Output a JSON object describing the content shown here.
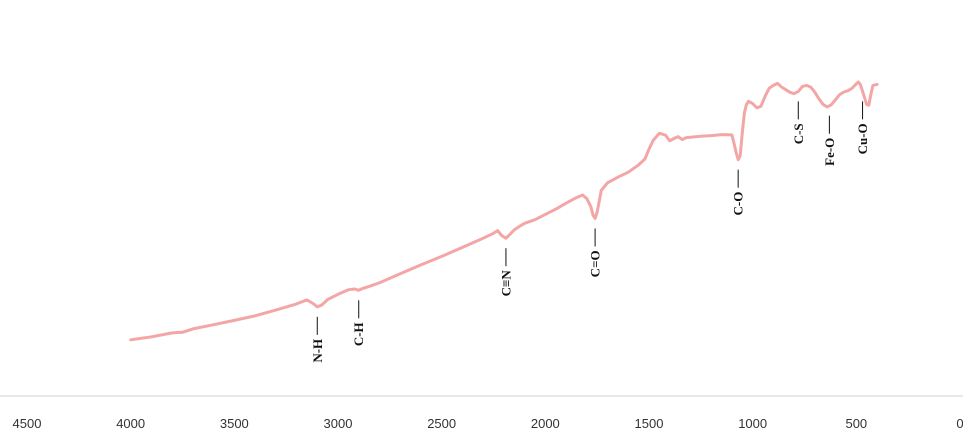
{
  "chart_data": {
    "type": "line",
    "title": "",
    "xlabel": "",
    "ylabel": "",
    "xlim": [
      4500,
      0
    ],
    "x_reversed": true,
    "ylim": [
      0,
      100
    ],
    "grid": false,
    "legend": "none",
    "x_ticks": [
      "4500",
      "4000",
      "3500",
      "3000",
      "2500",
      "2000",
      "1500",
      "1000",
      "500",
      "0"
    ],
    "series": [
      {
        "color": "#f4a6a6",
        "x": [
          4000,
          3900,
          3800,
          3750,
          3700,
          3600,
          3500,
          3400,
          3300,
          3200,
          3150,
          3120,
          3100,
          3080,
          3050,
          3000,
          2950,
          2920,
          2900,
          2880,
          2850,
          2800,
          2700,
          2600,
          2500,
          2400,
          2300,
          2250,
          2230,
          2210,
          2190,
          2170,
          2150,
          2120,
          2100,
          2050,
          2000,
          1950,
          1900,
          1850,
          1820,
          1800,
          1780,
          1770,
          1760,
          1750,
          1730,
          1700,
          1650,
          1600,
          1550,
          1520,
          1500,
          1480,
          1450,
          1420,
          1400,
          1380,
          1360,
          1340,
          1320,
          1300,
          1250,
          1200,
          1150,
          1100,
          1090,
          1080,
          1070,
          1060,
          1050,
          1040,
          1030,
          1020,
          1000,
          980,
          960,
          950,
          940,
          920,
          900,
          880,
          860,
          840,
          820,
          800,
          780,
          760,
          740,
          720,
          700,
          680,
          660,
          640,
          620,
          600,
          580,
          560,
          540,
          520,
          500,
          490,
          480,
          470,
          460,
          450,
          440,
          430,
          420,
          400
        ],
        "y": [
          15.2,
          16.1,
          17.3,
          17.5,
          18.5,
          19.8,
          21.1,
          22.5,
          24.2,
          26.1,
          27.3,
          26.2,
          25.2,
          25.7,
          27.4,
          29.0,
          30.4,
          30.6,
          30.2,
          30.8,
          31.4,
          32.5,
          35.2,
          37.9,
          40.5,
          43.2,
          46.0,
          47.5,
          48.3,
          46.8,
          46.0,
          47.2,
          48.5,
          49.8,
          50.5,
          51.6,
          53.2,
          54.8,
          56.6,
          58.3,
          59.1,
          58.0,
          55.5,
          53.0,
          52.0,
          54.0,
          60.5,
          62.8,
          64.5,
          66.0,
          68.2,
          70.0,
          73.0,
          75.6,
          77.8,
          77.2,
          75.5,
          76.2,
          76.8,
          75.9,
          76.5,
          76.6,
          76.9,
          77.1,
          77.4,
          77.3,
          74.8,
          72.0,
          69.8,
          71.0,
          78.0,
          84.0,
          86.5,
          87.5,
          86.8,
          85.5,
          86.0,
          87.5,
          89.0,
          91.5,
          92.3,
          92.9,
          91.8,
          91.0,
          90.2,
          89.8,
          90.5,
          92.0,
          92.3,
          91.8,
          90.2,
          88.2,
          86.5,
          85.8,
          86.5,
          88.0,
          89.5,
          90.3,
          90.7,
          91.5,
          92.8,
          93.3,
          92.5,
          90.5,
          88.5,
          86.5,
          86.3,
          89.5,
          92.3,
          92.6
        ]
      }
    ],
    "annotations": [
      {
        "text": "N-H",
        "x": 3100
      },
      {
        "text": "C-H",
        "x": 2900
      },
      {
        "text": "C≡N",
        "x": 2190
      },
      {
        "text": "C=O",
        "x": 1760
      },
      {
        "text": "C-O",
        "x": 1070
      },
      {
        "text": "C-S",
        "x": 780
      },
      {
        "text": "Fe-O",
        "x": 630
      },
      {
        "text": "Cu-O",
        "x": 470
      }
    ]
  }
}
